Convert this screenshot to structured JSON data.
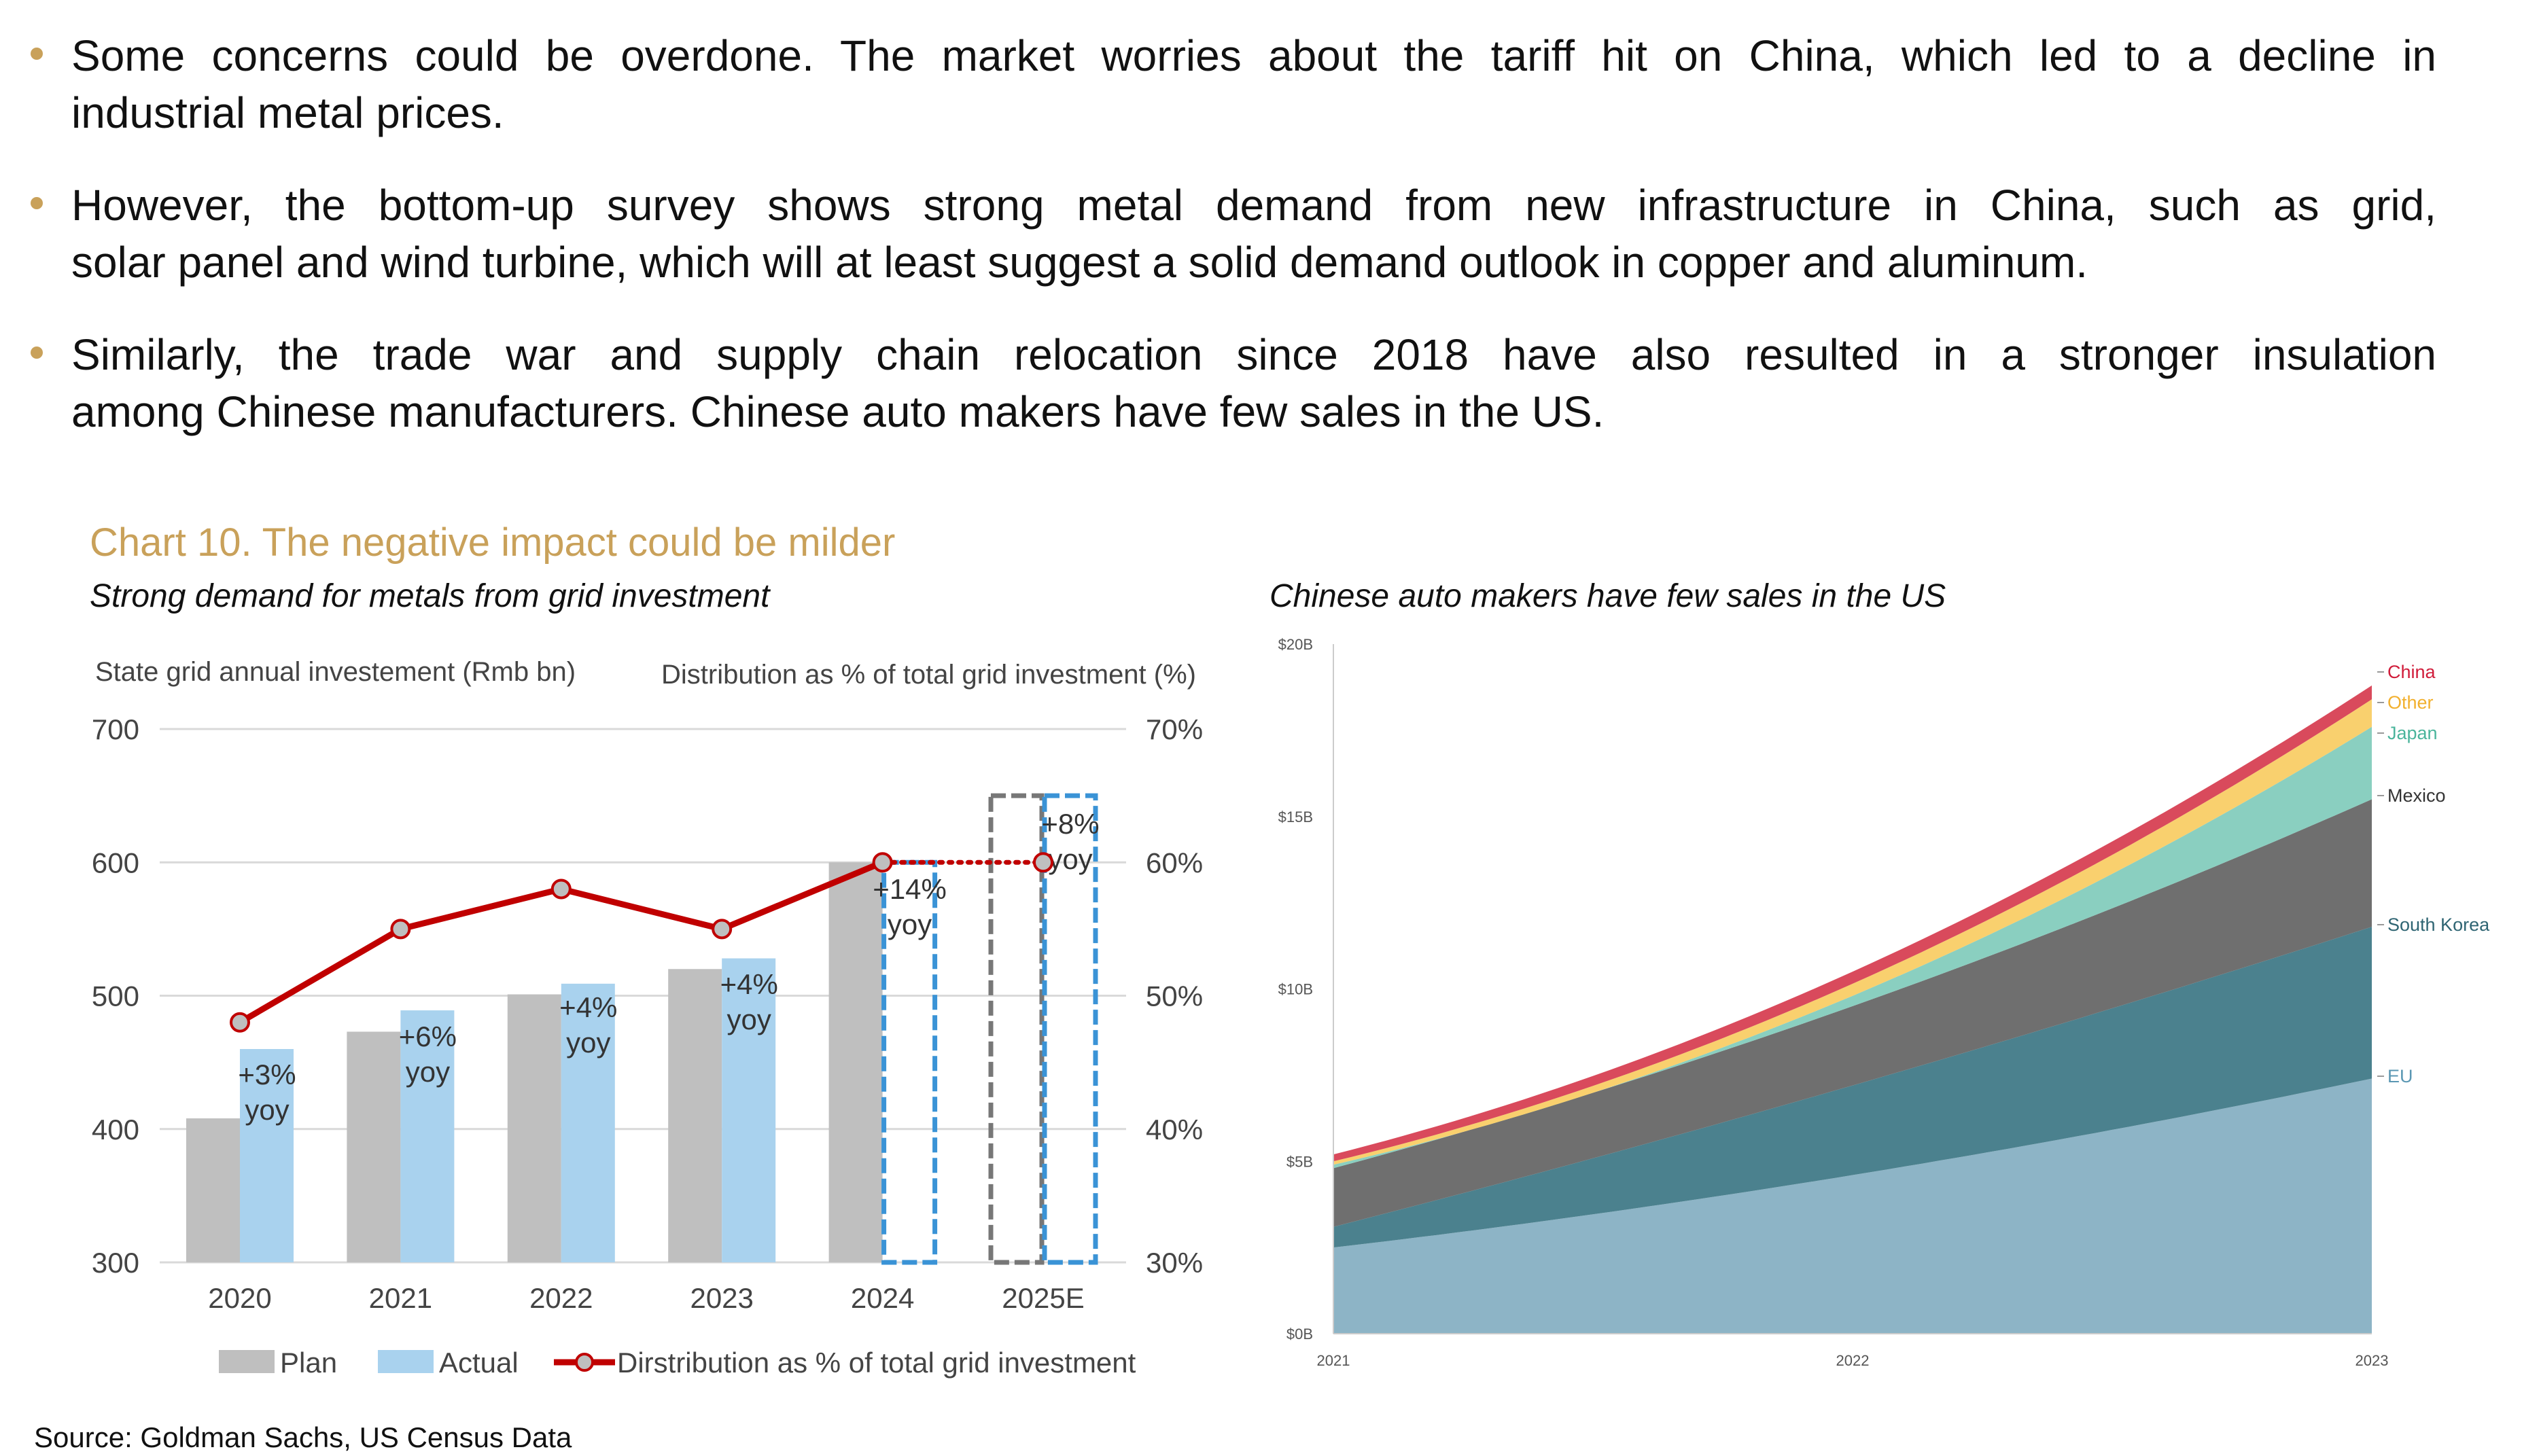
{
  "bullets": [
    {
      "lines": [
        "Some concerns could be overdone. The market worries about the tariff hit on China, which led to a decline in",
        "industrial metal prices."
      ]
    },
    {
      "lines": [
        "However, the bottom-up survey shows strong metal demand from new infrastructure in China, such as grid,",
        "solar panel and wind turbine, which will at least suggest a solid demand outlook in copper and aluminum."
      ]
    },
    {
      "lines": [
        "Similarly, the trade war and supply chain relocation since 2018 have also resulted in a stronger insulation",
        "among Chinese manufacturers. Chinese auto makers have few sales in the US."
      ]
    }
  ],
  "chart_title": "Chart 10. The negative impact could be milder",
  "source": "Source: Goldman Sachs, US Census Data",
  "colors": {
    "gold": "#C9A15A",
    "plan": "#BFBFBF",
    "actual": "#A9D2EE",
    "line": "#C00000",
    "dashed_blue": "#3A93D6"
  },
  "chart_data": [
    {
      "type": "bar",
      "subtitle": "Strong demand for metals from grid investment",
      "ylabel": "State grid annual investement (Rmb bn)",
      "y2label": "Distribution as % of total grid investment (%)",
      "ylim": [
        300,
        700
      ],
      "y2lim": [
        30,
        70
      ],
      "yticks": [
        "700",
        "600",
        "500",
        "400",
        "300"
      ],
      "y2ticks": [
        "70%",
        "60%",
        "50%",
        "40%",
        "30%"
      ],
      "categories": [
        "2020",
        "2021",
        "2022",
        "2023",
        "2024",
        "2025E"
      ],
      "series": [
        {
          "name": "Plan",
          "values": [
            408,
            473,
            501,
            520,
            600,
            650
          ],
          "dashed": [
            false,
            false,
            false,
            false,
            false,
            true
          ]
        },
        {
          "name": "Actual",
          "values": [
            460,
            489,
            509,
            528,
            600,
            650
          ],
          "dashed": [
            false,
            false,
            false,
            false,
            true,
            true
          ]
        },
        {
          "name": "Dirstribution as % of total grid investment",
          "axis": "right",
          "values": [
            48,
            55,
            58,
            55,
            60,
            60
          ]
        }
      ],
      "annotations": [
        {
          "category": "2020",
          "lines": [
            "+3%",
            "yoy"
          ]
        },
        {
          "category": "2021",
          "lines": [
            "+6%",
            "yoy"
          ]
        },
        {
          "category": "2022",
          "lines": [
            "+4%",
            "yoy"
          ]
        },
        {
          "category": "2023",
          "lines": [
            "+4%",
            "yoy"
          ]
        },
        {
          "category": "2024",
          "lines": [
            "+14%",
            "yoy"
          ]
        },
        {
          "category": "2025E",
          "lines": [
            "+8%",
            "yoy"
          ]
        }
      ],
      "legend": [
        "Plan",
        "Actual",
        "Dirstribution as % of total grid investment"
      ],
      "legend_position": "bottom"
    },
    {
      "type": "area",
      "subtitle": "Chinese auto makers have few sales in the US",
      "x": [
        "2021",
        "2022",
        "2023"
      ],
      "ylim": [
        0,
        20
      ],
      "yticks": [
        "$0B",
        "$5B",
        "$10B",
        "$15B",
        "$20B"
      ],
      "series": [
        {
          "name": "EU",
          "color": "#8DB4C6",
          "label_color": "#5A97B3",
          "values": [
            2.5,
            4.6,
            7.4
          ]
        },
        {
          "name": "South Korea",
          "color": "#4B818E",
          "label_color": "#2F6573",
          "values": [
            0.6,
            2.6,
            4.4
          ]
        },
        {
          "name": "Mexico",
          "color": "#6F6F6F",
          "label_color": "#333333",
          "values": [
            1.7,
            2.3,
            3.7
          ]
        },
        {
          "name": "Japan",
          "color": "#8ACFC0",
          "label_color": "#4BB59C",
          "values": [
            0.1,
            0.3,
            2.1
          ]
        },
        {
          "name": "Other",
          "color": "#F9D06E",
          "label_color": "#F2B02E",
          "values": [
            0.1,
            0.35,
            0.8
          ]
        },
        {
          "name": "China",
          "color": "#D94A5C",
          "label_color": "#D01C3A",
          "values": [
            0.2,
            0.35,
            0.4
          ]
        }
      ],
      "legend_position": "right"
    }
  ]
}
